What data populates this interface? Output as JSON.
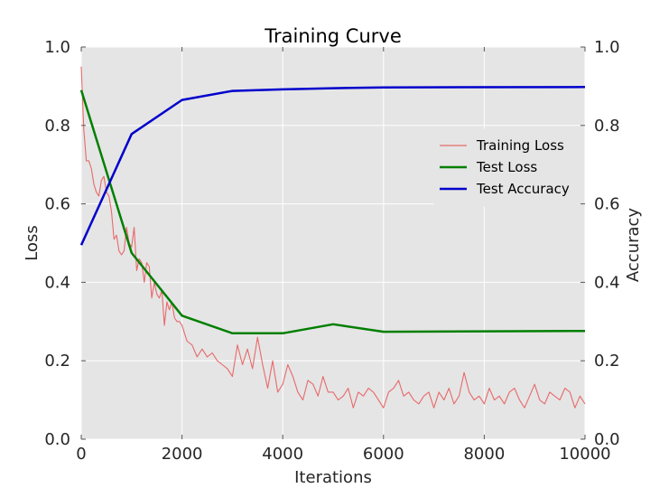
{
  "chart_data": {
    "type": "line",
    "title": "Training Curve",
    "xlabel": "Iterations",
    "ylabel": "Loss",
    "ylabel_right": "Accuracy",
    "xlim": [
      0,
      10000
    ],
    "ylim": [
      0,
      1.0
    ],
    "ylim_right": [
      0,
      1.0
    ],
    "x_ticks": [
      "0",
      "2000",
      "4000",
      "6000",
      "8000",
      "10000"
    ],
    "y_ticks": [
      "0.0",
      "0.2",
      "0.4",
      "0.6",
      "0.8",
      "1.0"
    ],
    "y_ticks_right": [
      "0.0",
      "0.2",
      "0.4",
      "0.6",
      "0.8",
      "1.0"
    ],
    "grid": true,
    "legend_position": "right",
    "series": [
      {
        "name": "Training Loss",
        "axis": "left",
        "color": "#e8696b",
        "x": [
          0,
          50,
          100,
          150,
          200,
          250,
          300,
          350,
          400,
          450,
          500,
          550,
          600,
          650,
          700,
          750,
          800,
          850,
          900,
          950,
          1000,
          1050,
          1100,
          1150,
          1200,
          1250,
          1300,
          1350,
          1400,
          1450,
          1500,
          1550,
          1600,
          1650,
          1700,
          1750,
          1800,
          1850,
          1900,
          1950,
          2000,
          2100,
          2200,
          2300,
          2400,
          2500,
          2600,
          2700,
          2800,
          2900,
          3000,
          3100,
          3200,
          3300,
          3400,
          3500,
          3600,
          3700,
          3800,
          3900,
          4000,
          4100,
          4200,
          4300,
          4400,
          4500,
          4600,
          4700,
          4800,
          4900,
          5000,
          5100,
          5200,
          5300,
          5400,
          5500,
          5600,
          5700,
          5800,
          5900,
          6000,
          6100,
          6200,
          6300,
          6400,
          6500,
          6600,
          6700,
          6800,
          6900,
          7000,
          7100,
          7200,
          7300,
          7400,
          7500,
          7600,
          7700,
          7800,
          7900,
          8000,
          8100,
          8200,
          8300,
          8400,
          8500,
          8600,
          8700,
          8800,
          8900,
          9000,
          9100,
          9200,
          9300,
          9400,
          9500,
          9600,
          9700,
          9800,
          9900,
          10000
        ],
        "values": [
          0.95,
          0.79,
          0.71,
          0.71,
          0.69,
          0.65,
          0.63,
          0.62,
          0.66,
          0.67,
          0.63,
          0.62,
          0.58,
          0.51,
          0.52,
          0.48,
          0.47,
          0.48,
          0.54,
          0.5,
          0.49,
          0.54,
          0.43,
          0.46,
          0.45,
          0.4,
          0.45,
          0.44,
          0.36,
          0.4,
          0.37,
          0.36,
          0.38,
          0.29,
          0.35,
          0.33,
          0.35,
          0.31,
          0.3,
          0.3,
          0.29,
          0.25,
          0.24,
          0.21,
          0.23,
          0.21,
          0.22,
          0.2,
          0.19,
          0.18,
          0.16,
          0.24,
          0.19,
          0.23,
          0.18,
          0.26,
          0.19,
          0.13,
          0.2,
          0.12,
          0.14,
          0.19,
          0.16,
          0.12,
          0.1,
          0.15,
          0.14,
          0.11,
          0.16,
          0.12,
          0.12,
          0.1,
          0.11,
          0.13,
          0.08,
          0.12,
          0.11,
          0.13,
          0.12,
          0.1,
          0.08,
          0.12,
          0.13,
          0.15,
          0.11,
          0.12,
          0.1,
          0.09,
          0.11,
          0.12,
          0.08,
          0.12,
          0.1,
          0.13,
          0.09,
          0.11,
          0.17,
          0.12,
          0.1,
          0.11,
          0.09,
          0.13,
          0.1,
          0.11,
          0.09,
          0.12,
          0.13,
          0.1,
          0.08,
          0.11,
          0.14,
          0.1,
          0.09,
          0.12,
          0.11,
          0.1,
          0.13,
          0.12,
          0.08,
          0.11,
          0.09
        ]
      },
      {
        "name": "Test Loss",
        "axis": "left",
        "color": "#007f00",
        "x": [
          0,
          1000,
          2000,
          3000,
          4000,
          5000,
          6000,
          10000
        ],
        "values": [
          0.89,
          0.475,
          0.315,
          0.27,
          0.27,
          0.293,
          0.274,
          0.276
        ]
      },
      {
        "name": "Test Accuracy",
        "axis": "right",
        "color": "#0000cc",
        "x": [
          0,
          1000,
          2000,
          3000,
          4000,
          5000,
          6000,
          10000
        ],
        "values": [
          0.495,
          0.778,
          0.865,
          0.888,
          0.892,
          0.895,
          0.897,
          0.898
        ]
      }
    ]
  }
}
